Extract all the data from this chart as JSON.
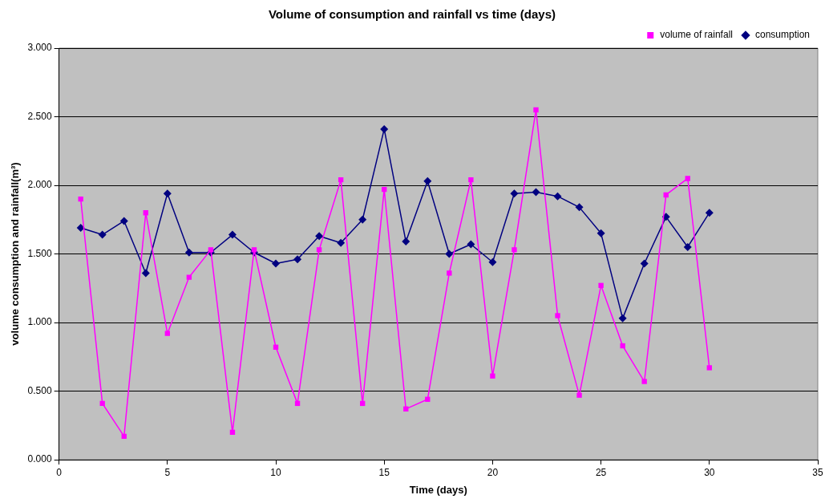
{
  "chart_data": {
    "type": "line",
    "title": "Volume of consumption and rainfall vs time (days)",
    "xlabel": "Time (days)",
    "ylabel": "volume consumption and rainfall(m³)",
    "x": [
      1,
      2,
      3,
      4,
      5,
      6,
      7,
      8,
      9,
      10,
      11,
      12,
      13,
      14,
      15,
      16,
      17,
      18,
      19,
      20,
      21,
      22,
      23,
      24,
      25,
      26,
      27,
      28,
      29,
      30
    ],
    "series": [
      {
        "name": "consumption",
        "color": "#000080",
        "marker": "diamond",
        "values": [
          1.69,
          1.64,
          1.74,
          1.36,
          1.94,
          1.51,
          1.51,
          1.64,
          1.51,
          1.43,
          1.46,
          1.63,
          1.58,
          1.75,
          2.41,
          1.59,
          2.03,
          1.5,
          1.57,
          1.44,
          1.94,
          1.95,
          1.92,
          1.84,
          1.65,
          1.03,
          1.43,
          1.77,
          1.55,
          1.8
        ]
      },
      {
        "name": "volume of rainfall",
        "color": "#ff00ff",
        "marker": "square",
        "values": [
          1.9,
          0.41,
          0.17,
          1.8,
          0.92,
          1.33,
          1.53,
          0.2,
          1.53,
          0.82,
          0.41,
          1.53,
          2.04,
          0.41,
          1.97,
          0.37,
          0.44,
          1.36,
          2.04,
          0.61,
          1.53,
          2.55,
          1.05,
          0.47,
          1.27,
          0.83,
          0.57,
          1.93,
          2.05,
          0.67
        ]
      }
    ],
    "xlim": [
      0,
      35
    ],
    "xticks": [
      0,
      5,
      10,
      15,
      20,
      25,
      30,
      35
    ],
    "ylim": [
      0,
      3
    ],
    "yticks": [
      {
        "value": 0,
        "label": "0.000"
      },
      {
        "value": 0.5,
        "label": "0.500"
      },
      {
        "value": 1,
        "label": "1.000"
      },
      {
        "value": 1.5,
        "label": "1.500"
      },
      {
        "value": 2,
        "label": "2.000"
      },
      {
        "value": 2.5,
        "label": "2.500"
      },
      {
        "value": 3,
        "label": "3.000"
      }
    ],
    "grid": "y",
    "legend": "top right",
    "line_style": "solid"
  }
}
